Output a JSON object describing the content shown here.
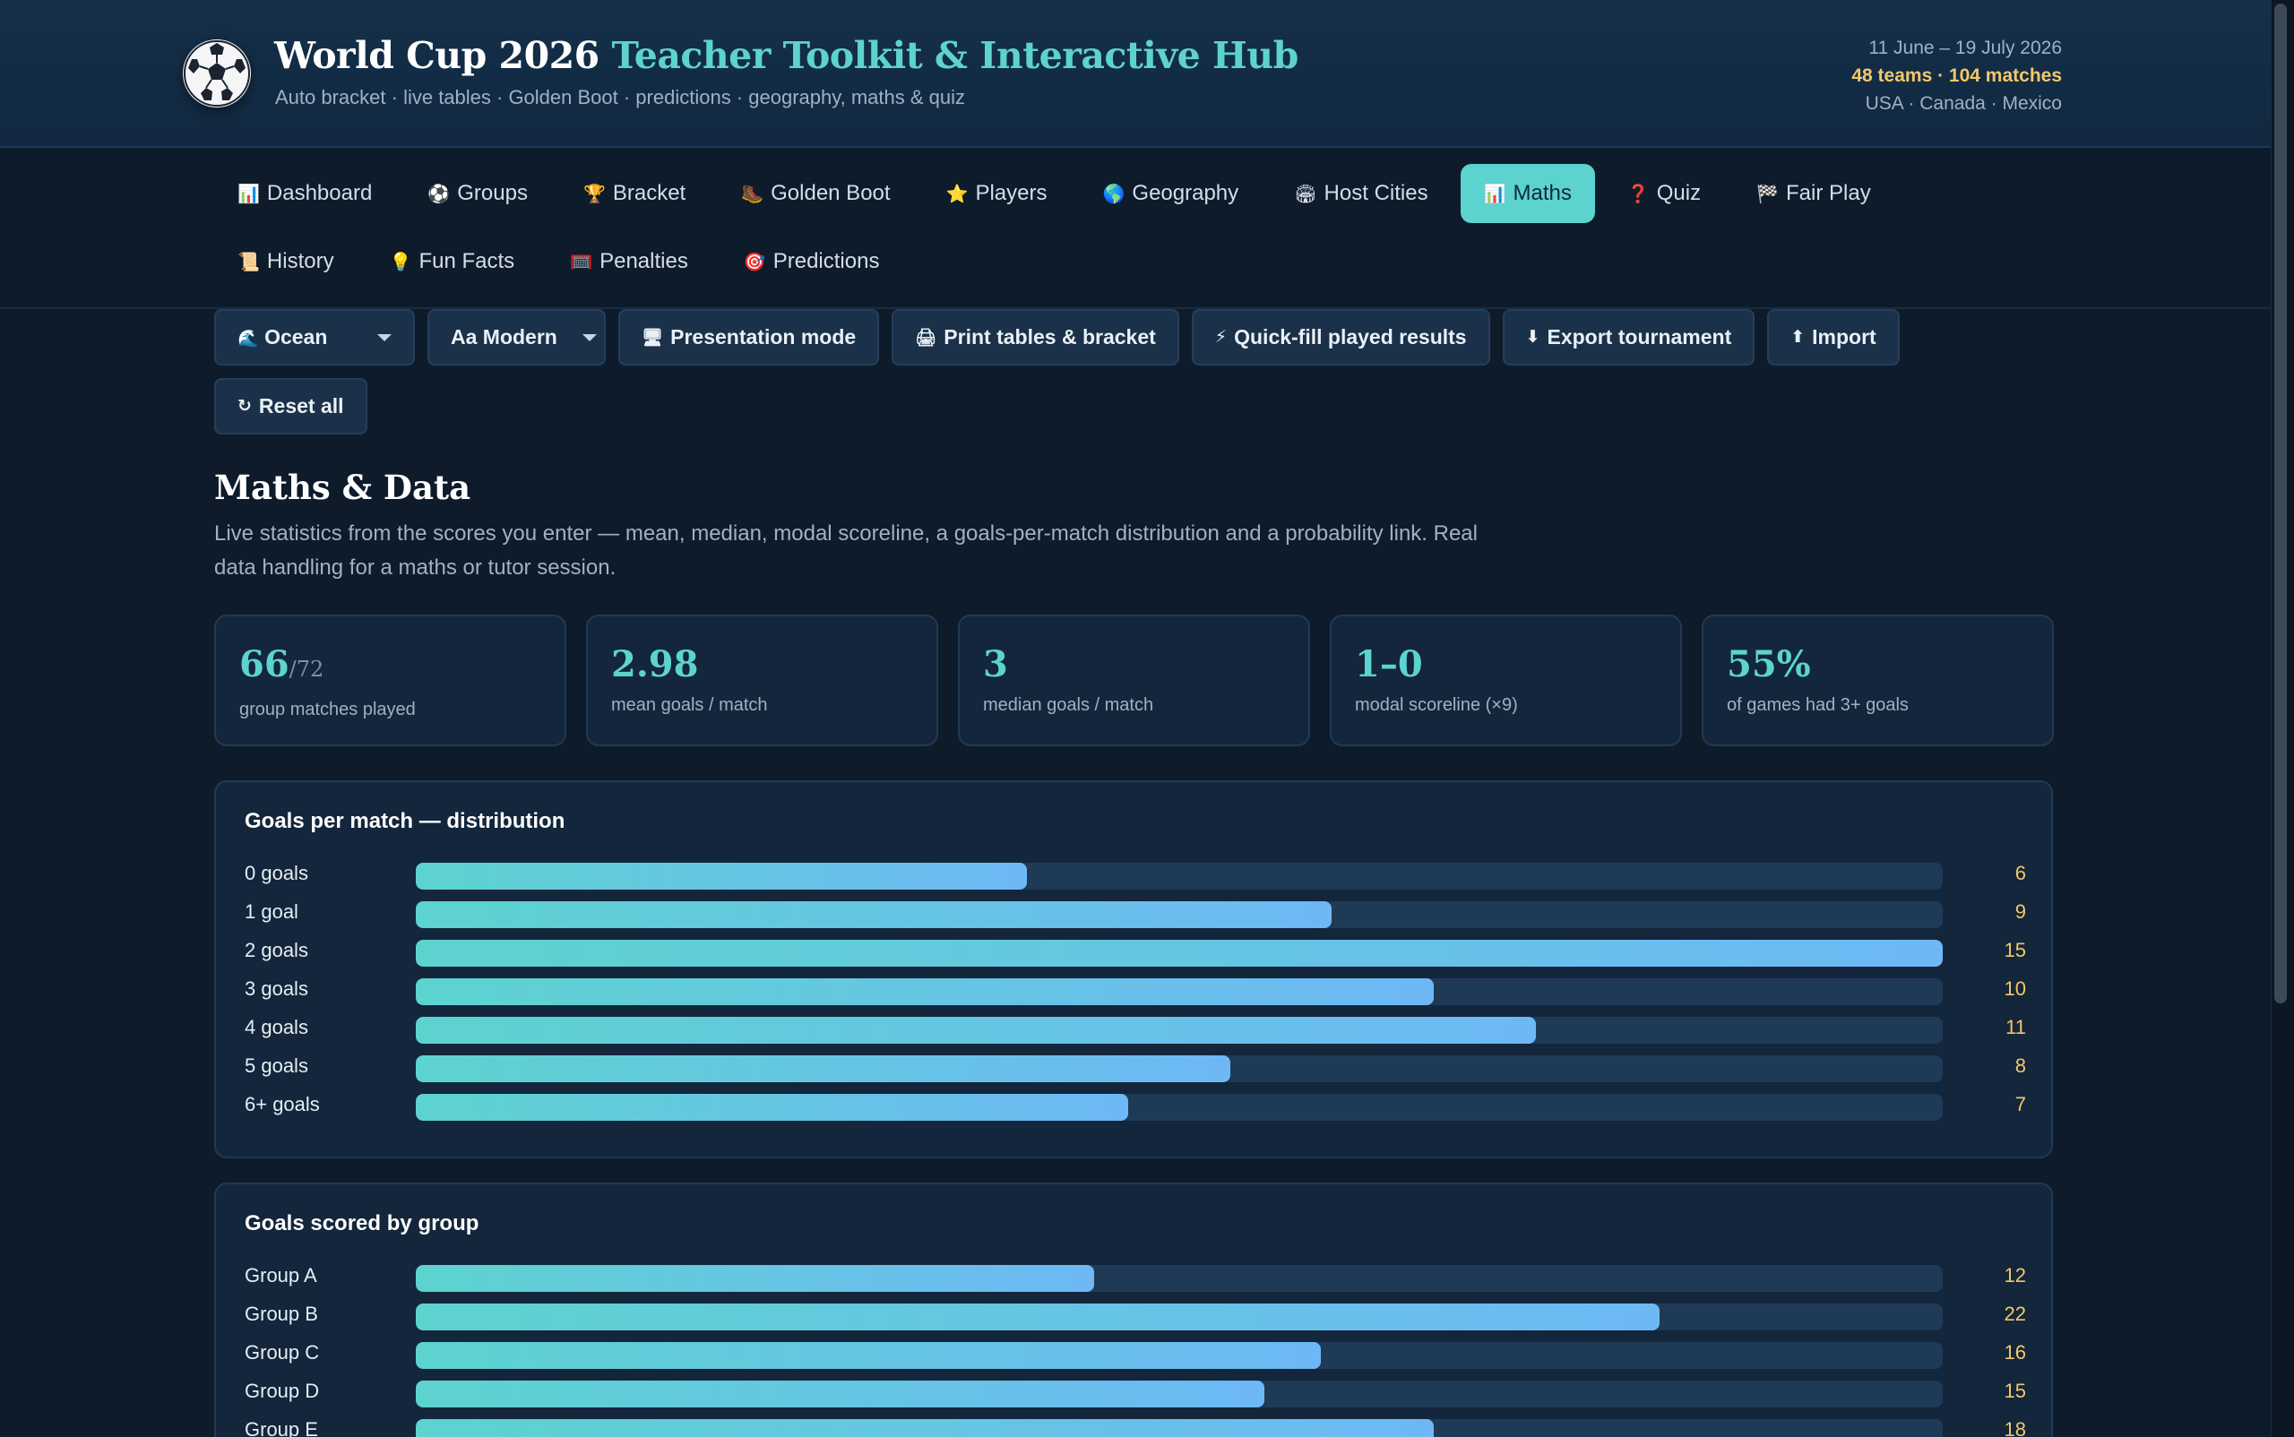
{
  "header": {
    "title_main": "World Cup 2026",
    "title_accent": "Teacher Toolkit & Interactive Hub",
    "subtitle": "Auto bracket · live tables · Golden Boot · predictions · geography, maths & quiz",
    "dates": "11 June – 19 July 2026",
    "counts": "48 teams · 104 matches",
    "hosts": "USA · Canada · Mexico",
    "logo_icon": "soccer-ball-icon"
  },
  "nav": {
    "row1": [
      {
        "icon": "📊",
        "label": "Dashboard",
        "name": "tab-dashboard"
      },
      {
        "icon": "⚽",
        "label": "Groups",
        "name": "tab-groups"
      },
      {
        "icon": "🏆",
        "label": "Bracket",
        "name": "tab-bracket"
      },
      {
        "icon": "🥾",
        "label": "Golden Boot",
        "name": "tab-golden-boot"
      },
      {
        "icon": "⭐",
        "label": "Players",
        "name": "tab-players"
      },
      {
        "icon": "🌎",
        "label": "Geography",
        "name": "tab-geography"
      },
      {
        "icon": "🏟",
        "label": "Host Cities",
        "name": "tab-host-cities"
      },
      {
        "icon": "📊",
        "label": "Maths",
        "name": "tab-maths",
        "active": true
      },
      {
        "icon": "❓",
        "label": "Quiz",
        "name": "tab-quiz"
      },
      {
        "icon": "🏁",
        "label": "Fair Play",
        "name": "tab-fair-play"
      }
    ],
    "row2": [
      {
        "icon": "📜",
        "label": "History",
        "name": "tab-history"
      },
      {
        "icon": "💡",
        "label": "Fun Facts",
        "name": "tab-fun-facts"
      },
      {
        "icon": "🥅",
        "label": "Penalties",
        "name": "tab-penalties"
      },
      {
        "icon": "🎯",
        "label": "Predictions",
        "name": "tab-predictions"
      }
    ]
  },
  "toolbar": {
    "theme_select": {
      "icon": "🌊",
      "value": "Ocean"
    },
    "font_select": {
      "value": "Aa Modern"
    },
    "presentation": {
      "icon": "🖥",
      "label": "Presentation mode"
    },
    "print": {
      "icon": "🖨",
      "label": "Print tables & bracket"
    },
    "quickfill": {
      "icon": "⚡",
      "label": "Quick-fill played results"
    },
    "export": {
      "icon": "⬇",
      "label": "Export tournament"
    },
    "import": {
      "icon": "⬆",
      "label": "Import"
    },
    "reset": {
      "icon": "↻",
      "label": "Reset all"
    }
  },
  "section": {
    "title": "Maths & Data",
    "description": "Live statistics from the scores you enter — mean, median, modal scoreline, a goals-per-match distribution and a probability link. Real data handling for a maths or tutor session."
  },
  "stats": [
    {
      "value": "66",
      "suffix": "/72",
      "label": "group matches played",
      "name": "stat-matches-played"
    },
    {
      "value": "2.98",
      "suffix": "",
      "label": "mean goals / match",
      "name": "stat-mean"
    },
    {
      "value": "3",
      "suffix": "",
      "label": "median goals / match",
      "name": "stat-median"
    },
    {
      "value": "1–0",
      "suffix": "",
      "label": "modal scoreline (×9)",
      "name": "stat-modal"
    },
    {
      "value": "55%",
      "suffix": "",
      "label": "of games had 3+ goals",
      "name": "stat-three-plus"
    }
  ],
  "chart_data": [
    {
      "type": "bar",
      "title": "Goals per match — distribution",
      "categories": [
        "0 goals",
        "1 goal",
        "2 goals",
        "3 goals",
        "4 goals",
        "5 goals",
        "6+ goals"
      ],
      "values": [
        6,
        9,
        15,
        10,
        11,
        8,
        7
      ],
      "orientation": "horizontal"
    },
    {
      "type": "bar",
      "title": "Goals scored by group",
      "categories": [
        "Group A",
        "Group B",
        "Group C",
        "Group D",
        "Group E"
      ],
      "values": [
        12,
        22,
        16,
        15,
        18
      ],
      "scale_max": 27,
      "orientation": "horizontal"
    }
  ],
  "colors": {
    "background": "#0d1b2b",
    "accent": "#5dd3cf",
    "highlight": "#f2c86a",
    "bar_gradient_end": "#6db8f5"
  }
}
